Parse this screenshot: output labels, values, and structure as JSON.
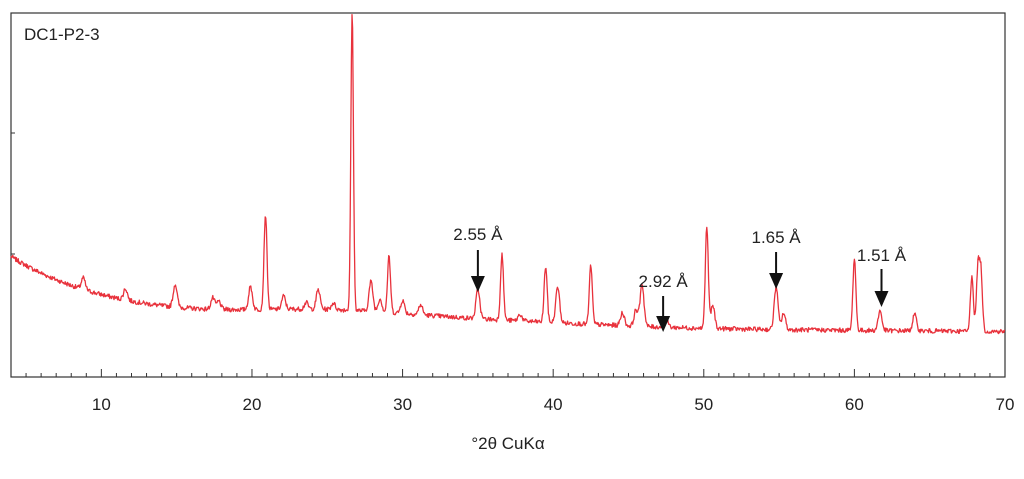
{
  "chart_data": {
    "type": "line",
    "title": "DC1-P2-3",
    "xlabel": "°2θ CuKα",
    "ylabel": "",
    "xlim": [
      4,
      70
    ],
    "ylim": [
      0,
      100
    ],
    "x_ticks": [
      "10",
      "20",
      "30",
      "40",
      "50",
      "60",
      "70"
    ],
    "colors": {
      "trace": "#e8323c",
      "axis": "#333333",
      "arrow": "#111111"
    },
    "peaks": [
      {
        "x": 8.8,
        "h": 3.5
      },
      {
        "x": 11.6,
        "h": 3.5
      },
      {
        "x": 14.9,
        "h": 7
      },
      {
        "x": 17.4,
        "h": 3.5
      },
      {
        "x": 17.8,
        "h": 2.5
      },
      {
        "x": 19.9,
        "h": 7
      },
      {
        "x": 20.9,
        "h": 29
      },
      {
        "x": 22.1,
        "h": 4
      },
      {
        "x": 23.6,
        "h": 2
      },
      {
        "x": 24.4,
        "h": 6
      },
      {
        "x": 25.4,
        "h": 2
      },
      {
        "x": 26.65,
        "h": 91
      },
      {
        "x": 27.9,
        "h": 9
      },
      {
        "x": 28.5,
        "h": 4
      },
      {
        "x": 29.1,
        "h": 17
      },
      {
        "x": 30.0,
        "h": 4
      },
      {
        "x": 31.2,
        "h": 3
      },
      {
        "x": 35.0,
        "h": 9
      },
      {
        "x": 36.6,
        "h": 20
      },
      {
        "x": 37.8,
        "h": 2
      },
      {
        "x": 39.5,
        "h": 17
      },
      {
        "x": 40.3,
        "h": 11
      },
      {
        "x": 42.5,
        "h": 18
      },
      {
        "x": 44.6,
        "h": 4
      },
      {
        "x": 45.5,
        "h": 5
      },
      {
        "x": 45.9,
        "h": 13
      },
      {
        "x": 47.5,
        "h": 3
      },
      {
        "x": 50.2,
        "h": 31
      },
      {
        "x": 50.6,
        "h": 7
      },
      {
        "x": 54.8,
        "h": 13
      },
      {
        "x": 55.3,
        "h": 5
      },
      {
        "x": 60.0,
        "h": 22
      },
      {
        "x": 61.7,
        "h": 6
      },
      {
        "x": 64.0,
        "h": 5
      },
      {
        "x": 67.8,
        "h": 17
      },
      {
        "x": 68.2,
        "h": 19
      },
      {
        "x": 68.4,
        "h": 18
      }
    ],
    "annotations": [
      {
        "label": "2.55 Å",
        "x": 35.0
      },
      {
        "label": "2.92 Å",
        "x": 47.3
      },
      {
        "label": "1.65 Å",
        "x": 54.8
      },
      {
        "label": "1.51 Å",
        "x": 61.8
      }
    ]
  }
}
